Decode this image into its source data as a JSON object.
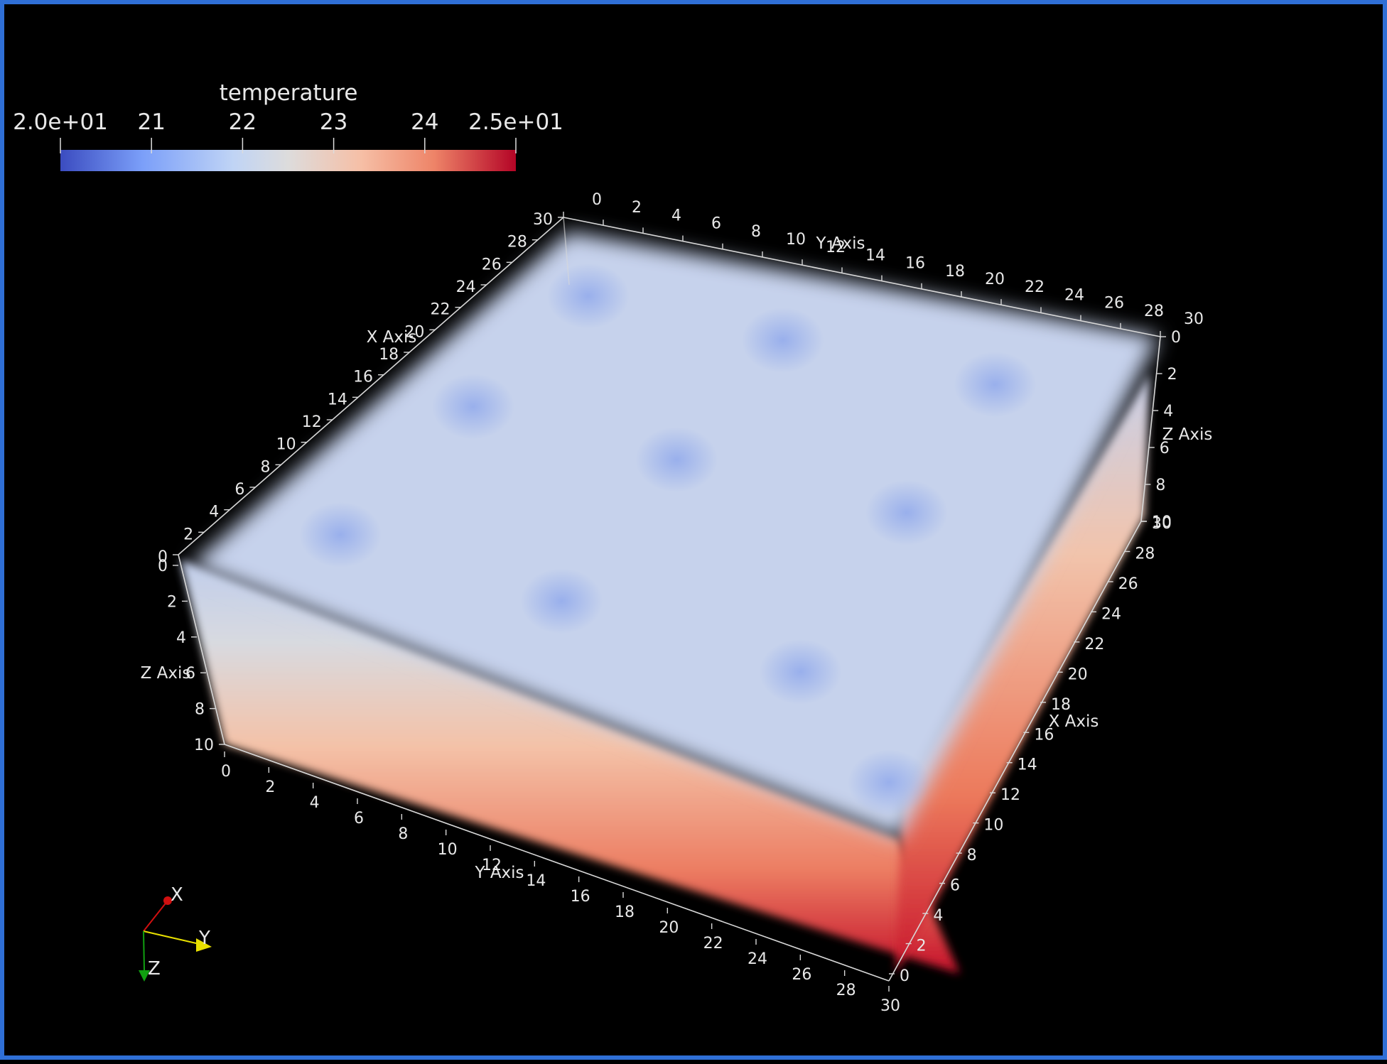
{
  "colorbar": {
    "title": "temperature",
    "ticks": [
      "2.0e+01",
      "21",
      "22",
      "23",
      "24",
      "2.5e+01"
    ],
    "tick_values": [
      20,
      21,
      22,
      23,
      24,
      25
    ],
    "range": [
      20,
      25
    ],
    "colors": [
      "#3b4cc0",
      "#7b9ff9",
      "#c0d4f5",
      "#dddcdc",
      "#f6bfa6",
      "#ee8468",
      "#b40426"
    ]
  },
  "axes": {
    "top_y": {
      "title": "Y Axis",
      "ticks": [
        "0",
        "2",
        "4",
        "6",
        "8",
        "10",
        "12",
        "14",
        "16",
        "18",
        "20",
        "22",
        "24",
        "26",
        "28",
        "30"
      ]
    },
    "top_x": {
      "title": "X Axis",
      "ticks": [
        "30",
        "28",
        "26",
        "24",
        "22",
        "20",
        "18",
        "16",
        "14",
        "12",
        "10",
        "8",
        "6",
        "4",
        "2",
        "0"
      ]
    },
    "left_z": {
      "title": "Z Axis",
      "ticks": [
        "0",
        "2",
        "4",
        "6",
        "8",
        "10"
      ]
    },
    "right_z": {
      "title": "Z Axis",
      "ticks": [
        "0",
        "2",
        "4",
        "6",
        "8",
        "10"
      ]
    },
    "bottom_y": {
      "title": "Y Axis",
      "ticks": [
        "0",
        "2",
        "4",
        "6",
        "8",
        "10",
        "12",
        "14",
        "16",
        "18",
        "20",
        "22",
        "24",
        "26",
        "28",
        "30"
      ]
    },
    "right_x": {
      "title": "X Axis",
      "ticks": [
        "30",
        "28",
        "26",
        "24",
        "22",
        "20",
        "18",
        "16",
        "14",
        "12",
        "10",
        "8",
        "6",
        "4",
        "2",
        "0"
      ]
    }
  },
  "orientation": {
    "x": "X",
    "y": "Y",
    "z": "Z",
    "x_color": "#d01010",
    "y_color": "#e8e000",
    "z_color": "#10a010"
  },
  "volume": {
    "top_color": "#c6d2ec",
    "cold_spots": [
      [
        660,
        330
      ],
      [
        880,
        380
      ],
      [
        1120,
        430
      ],
      [
        530,
        455
      ],
      [
        760,
        515
      ],
      [
        1020,
        575
      ],
      [
        380,
        600
      ],
      [
        630,
        675
      ],
      [
        900,
        755
      ],
      [
        1000,
        880
      ]
    ]
  }
}
